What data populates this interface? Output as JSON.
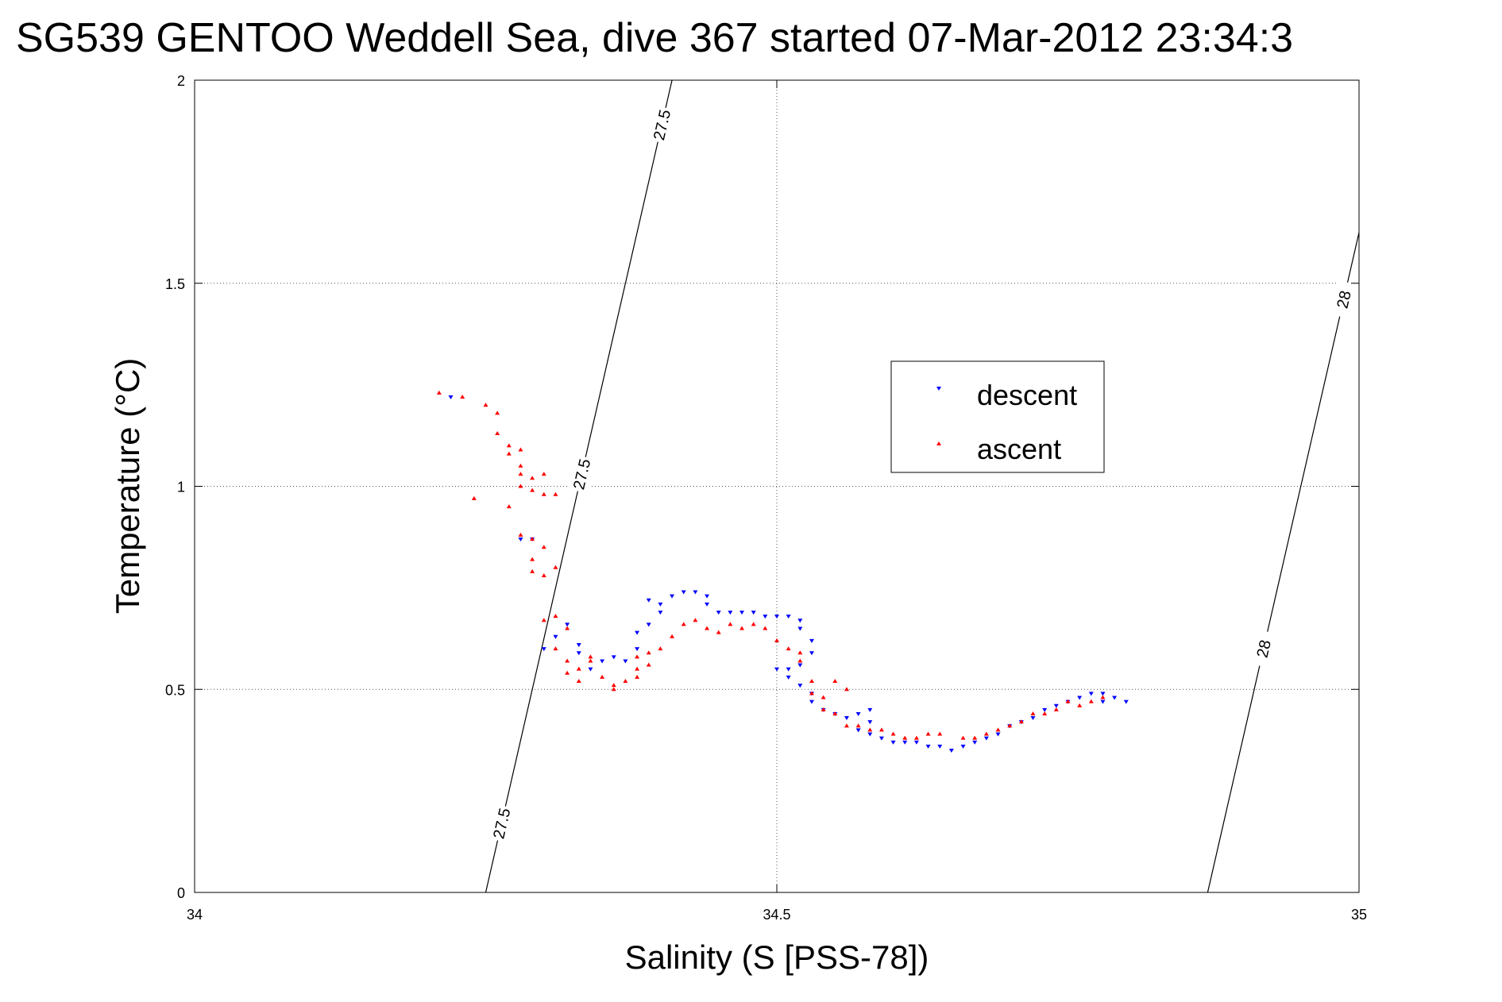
{
  "chart_data": {
    "type": "scatter",
    "title": "SG539 GENTOO Weddell Sea, dive 367 started 07-Mar-2012 23:34:3",
    "xlabel": "Salinity (S [PSS-78])",
    "ylabel": "Temperature (°C)",
    "xlim": [
      34,
      35
    ],
    "ylim": [
      0,
      2
    ],
    "x_ticks": [
      34,
      34.5,
      35
    ],
    "x_tick_labels": [
      "34",
      "34.5",
      "35"
    ],
    "y_ticks": [
      0,
      0.5,
      1,
      1.5,
      2
    ],
    "y_tick_labels": [
      "0",
      "0.5",
      "1",
      "1.5",
      "2"
    ],
    "grid": true,
    "legend_position": "upper-right",
    "series": [
      {
        "name": "descent",
        "color": "#0000ff",
        "marker": "triangle-down",
        "points": [
          [
            34.22,
            1.22
          ],
          [
            34.29,
            0.87
          ],
          [
            34.28,
            0.87
          ],
          [
            34.3,
            0.6
          ],
          [
            34.31,
            0.63
          ],
          [
            34.32,
            0.66
          ],
          [
            34.33,
            0.61
          ],
          [
            34.33,
            0.59
          ],
          [
            34.34,
            0.55
          ],
          [
            34.35,
            0.57
          ],
          [
            34.36,
            0.58
          ],
          [
            34.37,
            0.57
          ],
          [
            34.38,
            0.6
          ],
          [
            34.38,
            0.64
          ],
          [
            34.39,
            0.66
          ],
          [
            34.4,
            0.69
          ],
          [
            34.39,
            0.72
          ],
          [
            34.4,
            0.71
          ],
          [
            34.41,
            0.73
          ],
          [
            34.42,
            0.74
          ],
          [
            34.43,
            0.74
          ],
          [
            34.44,
            0.73
          ],
          [
            34.44,
            0.71
          ],
          [
            34.45,
            0.69
          ],
          [
            34.46,
            0.69
          ],
          [
            34.47,
            0.69
          ],
          [
            34.48,
            0.69
          ],
          [
            34.49,
            0.68
          ],
          [
            34.5,
            0.68
          ],
          [
            34.51,
            0.68
          ],
          [
            34.52,
            0.67
          ],
          [
            34.52,
            0.65
          ],
          [
            34.53,
            0.62
          ],
          [
            34.53,
            0.59
          ],
          [
            34.52,
            0.56
          ],
          [
            34.51,
            0.55
          ],
          [
            34.5,
            0.55
          ],
          [
            34.51,
            0.53
          ],
          [
            34.52,
            0.51
          ],
          [
            34.53,
            0.49
          ],
          [
            34.53,
            0.47
          ],
          [
            34.54,
            0.45
          ],
          [
            34.55,
            0.44
          ],
          [
            34.56,
            0.43
          ],
          [
            34.57,
            0.44
          ],
          [
            34.58,
            0.45
          ],
          [
            34.58,
            0.42
          ],
          [
            34.57,
            0.4
          ],
          [
            34.58,
            0.39
          ],
          [
            34.59,
            0.38
          ],
          [
            34.6,
            0.37
          ],
          [
            34.61,
            0.37
          ],
          [
            34.62,
            0.37
          ],
          [
            34.63,
            0.36
          ],
          [
            34.64,
            0.36
          ],
          [
            34.65,
            0.35
          ],
          [
            34.66,
            0.36
          ],
          [
            34.67,
            0.37
          ],
          [
            34.68,
            0.38
          ],
          [
            34.69,
            0.39
          ],
          [
            34.7,
            0.41
          ],
          [
            34.71,
            0.42
          ],
          [
            34.72,
            0.43
          ],
          [
            34.73,
            0.45
          ],
          [
            34.74,
            0.46
          ],
          [
            34.75,
            0.47
          ],
          [
            34.76,
            0.48
          ],
          [
            34.77,
            0.49
          ],
          [
            34.78,
            0.49
          ],
          [
            34.79,
            0.48
          ],
          [
            34.78,
            0.47
          ],
          [
            34.8,
            0.47
          ]
        ]
      },
      {
        "name": "ascent",
        "color": "#ff0000",
        "marker": "triangle-up",
        "points": [
          [
            34.21,
            1.23
          ],
          [
            34.23,
            1.22
          ],
          [
            34.25,
            1.2
          ],
          [
            34.26,
            1.18
          ],
          [
            34.26,
            1.13
          ],
          [
            34.27,
            1.1
          ],
          [
            34.27,
            1.08
          ],
          [
            34.28,
            1.09
          ],
          [
            34.28,
            1.05
          ],
          [
            34.28,
            1.03
          ],
          [
            34.28,
            1.0
          ],
          [
            34.29,
            0.99
          ],
          [
            34.29,
            1.02
          ],
          [
            34.3,
            1.03
          ],
          [
            34.3,
            0.98
          ],
          [
            34.31,
            0.98
          ],
          [
            34.24,
            0.97
          ],
          [
            34.27,
            0.95
          ],
          [
            34.28,
            0.88
          ],
          [
            34.29,
            0.87
          ],
          [
            34.3,
            0.85
          ],
          [
            34.29,
            0.82
          ],
          [
            34.29,
            0.79
          ],
          [
            34.3,
            0.78
          ],
          [
            34.31,
            0.8
          ],
          [
            34.3,
            0.67
          ],
          [
            34.31,
            0.68
          ],
          [
            34.32,
            0.65
          ],
          [
            34.31,
            0.6
          ],
          [
            34.32,
            0.57
          ],
          [
            34.32,
            0.54
          ],
          [
            34.33,
            0.55
          ],
          [
            34.33,
            0.52
          ],
          [
            34.34,
            0.57
          ],
          [
            34.34,
            0.58
          ],
          [
            34.35,
            0.53
          ],
          [
            34.36,
            0.51
          ],
          [
            34.36,
            0.5
          ],
          [
            34.37,
            0.52
          ],
          [
            34.38,
            0.53
          ],
          [
            34.38,
            0.55
          ],
          [
            34.38,
            0.58
          ],
          [
            34.39,
            0.59
          ],
          [
            34.39,
            0.56
          ],
          [
            34.4,
            0.6
          ],
          [
            34.41,
            0.63
          ],
          [
            34.42,
            0.66
          ],
          [
            34.43,
            0.67
          ],
          [
            34.44,
            0.65
          ],
          [
            34.45,
            0.64
          ],
          [
            34.46,
            0.66
          ],
          [
            34.47,
            0.65
          ],
          [
            34.48,
            0.66
          ],
          [
            34.49,
            0.65
          ],
          [
            34.5,
            0.62
          ],
          [
            34.51,
            0.6
          ],
          [
            34.52,
            0.59
          ],
          [
            34.52,
            0.57
          ],
          [
            34.53,
            0.52
          ],
          [
            34.53,
            0.49
          ],
          [
            34.54,
            0.48
          ],
          [
            34.54,
            0.45
          ],
          [
            34.55,
            0.44
          ],
          [
            34.56,
            0.41
          ],
          [
            34.57,
            0.41
          ],
          [
            34.58,
            0.4
          ],
          [
            34.59,
            0.4
          ],
          [
            34.6,
            0.39
          ],
          [
            34.61,
            0.38
          ],
          [
            34.62,
            0.38
          ],
          [
            34.63,
            0.39
          ],
          [
            34.64,
            0.39
          ],
          [
            34.66,
            0.38
          ],
          [
            34.67,
            0.38
          ],
          [
            34.68,
            0.39
          ],
          [
            34.69,
            0.4
          ],
          [
            34.7,
            0.41
          ],
          [
            34.71,
            0.42
          ],
          [
            34.72,
            0.44
          ],
          [
            34.73,
            0.44
          ],
          [
            34.74,
            0.45
          ],
          [
            34.75,
            0.47
          ],
          [
            34.76,
            0.46
          ],
          [
            34.77,
            0.47
          ],
          [
            34.78,
            0.48
          ],
          [
            34.56,
            0.5
          ],
          [
            34.55,
            0.52
          ]
        ]
      }
    ],
    "contours": [
      {
        "label": "27.5",
        "x_at_bottom": 34.25,
        "x_at_top": 34.41
      },
      {
        "label": "28",
        "x_at_bottom": 34.87,
        "x_at_top": 35.03
      }
    ],
    "contour_label_positions": [
      {
        "label": "27.5",
        "y": 1.89,
        "contour": 0
      },
      {
        "label": "27.5",
        "y": 1.03,
        "contour": 0
      },
      {
        "label": "27.5",
        "y": 0.17,
        "contour": 0
      },
      {
        "label": "28",
        "y": 1.46,
        "contour": 1
      },
      {
        "label": "28",
        "y": 0.6,
        "contour": 1
      }
    ]
  }
}
